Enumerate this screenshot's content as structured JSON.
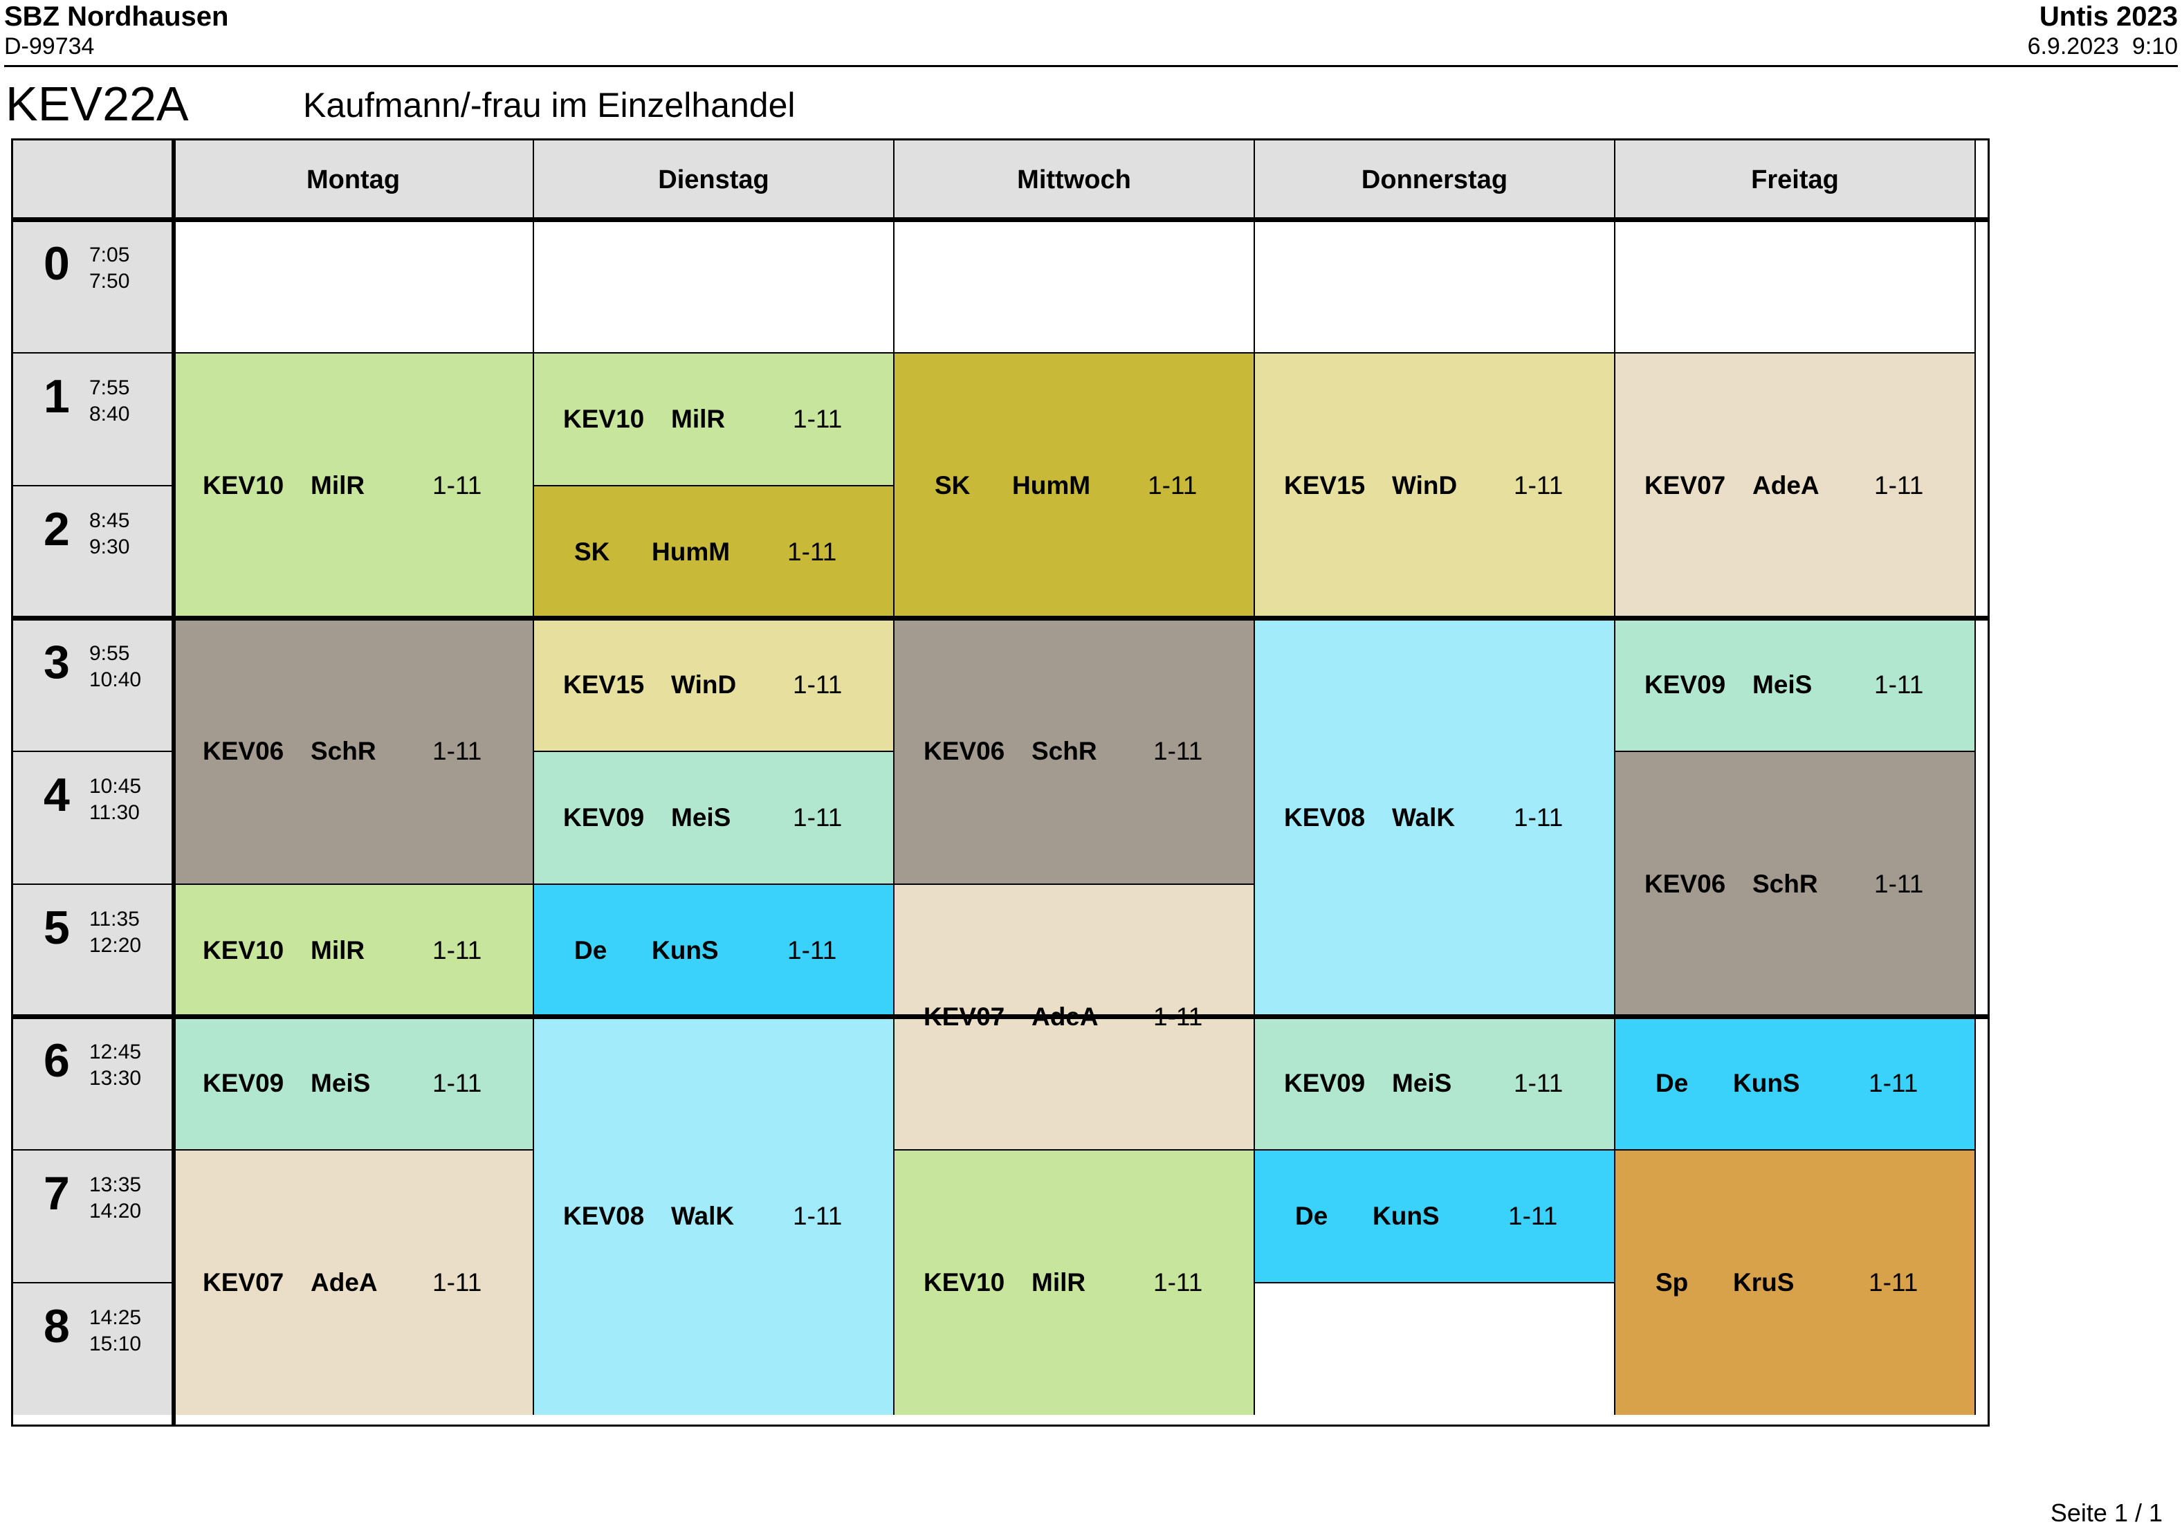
{
  "header": {
    "school": "SBZ Nordhausen",
    "code": "D-99734",
    "version": "Untis 2023",
    "printed": "6.9.2023  9:10"
  },
  "class": {
    "name": "KEV22A",
    "description": "Kaufmann/-frau im Einzelhandel"
  },
  "footer": {
    "page": "Seite 1 / 1"
  },
  "days": [
    "Montag",
    "Dienstag",
    "Mittwoch",
    "Donnerstag",
    "Freitag"
  ],
  "periods": [
    {
      "num": "0",
      "start": "7:05",
      "end": "7:50"
    },
    {
      "num": "1",
      "start": "7:55",
      "end": "8:40"
    },
    {
      "num": "2",
      "start": "8:45",
      "end": "9:30"
    },
    {
      "num": "3",
      "start": "9:55",
      "end": "10:40"
    },
    {
      "num": "4",
      "start": "10:45",
      "end": "11:30"
    },
    {
      "num": "5",
      "start": "11:35",
      "end": "12:20"
    },
    {
      "num": "6",
      "start": "12:45",
      "end": "13:30"
    },
    {
      "num": "7",
      "start": "13:35",
      "end": "14:20"
    },
    {
      "num": "8",
      "start": "14:25",
      "end": "15:10"
    }
  ],
  "colors": {
    "KEV10": "#c8e59c",
    "SK": "#c8ba38",
    "KEV15": "#e6df9e",
    "KEV07": "#ebdec6",
    "KEV06": "#a39b90",
    "KEV09": "#b2e7cf",
    "KEV08": "#a2ebfb",
    "De": "#3ad2fa",
    "Sp": "#d8a24a"
  },
  "lessons": [
    {
      "day": 0,
      "from": 1,
      "span": 2,
      "subject": "KEV10",
      "teacher": "MilR",
      "weeks": "1-11"
    },
    {
      "day": 0,
      "from": 3,
      "span": 2,
      "subject": "KEV06",
      "teacher": "SchR",
      "weeks": "1-11"
    },
    {
      "day": 0,
      "from": 5,
      "span": 1,
      "subject": "KEV10",
      "teacher": "MilR",
      "weeks": "1-11"
    },
    {
      "day": 0,
      "from": 6,
      "span": 1,
      "subject": "KEV09",
      "teacher": "MeiS",
      "weeks": "1-11"
    },
    {
      "day": 0,
      "from": 7,
      "span": 2,
      "subject": "KEV07",
      "teacher": "AdeA",
      "weeks": "1-11"
    },
    {
      "day": 1,
      "from": 1,
      "span": 1,
      "subject": "KEV10",
      "teacher": "MilR",
      "weeks": "1-11"
    },
    {
      "day": 1,
      "from": 2,
      "span": 1,
      "subject": "SK",
      "teacher": "HumM",
      "weeks": "1-11"
    },
    {
      "day": 1,
      "from": 3,
      "span": 1,
      "subject": "KEV15",
      "teacher": "WinD",
      "weeks": "1-11"
    },
    {
      "day": 1,
      "from": 4,
      "span": 1,
      "subject": "KEV09",
      "teacher": "MeiS",
      "weeks": "1-11"
    },
    {
      "day": 1,
      "from": 5,
      "span": 1,
      "subject": "De",
      "teacher": "KunS",
      "weeks": "1-11"
    },
    {
      "day": 1,
      "from": 6,
      "span": 3,
      "subject": "KEV08",
      "teacher": "WalK",
      "weeks": "1-11"
    },
    {
      "day": 2,
      "from": 1,
      "span": 2,
      "subject": "SK",
      "teacher": "HumM",
      "weeks": "1-11"
    },
    {
      "day": 2,
      "from": 3,
      "span": 2,
      "subject": "KEV06",
      "teacher": "SchR",
      "weeks": "1-11"
    },
    {
      "day": 2,
      "from": 5,
      "span": 2,
      "subject": "KEV07",
      "teacher": "AdeA",
      "weeks": "1-11"
    },
    {
      "day": 2,
      "from": 7,
      "span": 2,
      "subject": "KEV10",
      "teacher": "MilR",
      "weeks": "1-11"
    },
    {
      "day": 3,
      "from": 1,
      "span": 2,
      "subject": "KEV15",
      "teacher": "WinD",
      "weeks": "1-11"
    },
    {
      "day": 3,
      "from": 3,
      "span": 3,
      "subject": "KEV08",
      "teacher": "WalK",
      "weeks": "1-11"
    },
    {
      "day": 3,
      "from": 6,
      "span": 1,
      "subject": "KEV09",
      "teacher": "MeiS",
      "weeks": "1-11"
    },
    {
      "day": 3,
      "from": 7,
      "span": 1,
      "subject": "De",
      "teacher": "KunS",
      "weeks": "1-11"
    },
    {
      "day": 4,
      "from": 1,
      "span": 2,
      "subject": "KEV07",
      "teacher": "AdeA",
      "weeks": "1-11"
    },
    {
      "day": 4,
      "from": 3,
      "span": 1,
      "subject": "KEV09",
      "teacher": "MeiS",
      "weeks": "1-11"
    },
    {
      "day": 4,
      "from": 4,
      "span": 2,
      "subject": "KEV06",
      "teacher": "SchR",
      "weeks": "1-11"
    },
    {
      "day": 4,
      "from": 6,
      "span": 1,
      "subject": "De",
      "teacher": "KunS",
      "weeks": "1-11"
    },
    {
      "day": 4,
      "from": 7,
      "span": 2,
      "subject": "Sp",
      "teacher": "KruS",
      "weeks": "1-11"
    }
  ]
}
